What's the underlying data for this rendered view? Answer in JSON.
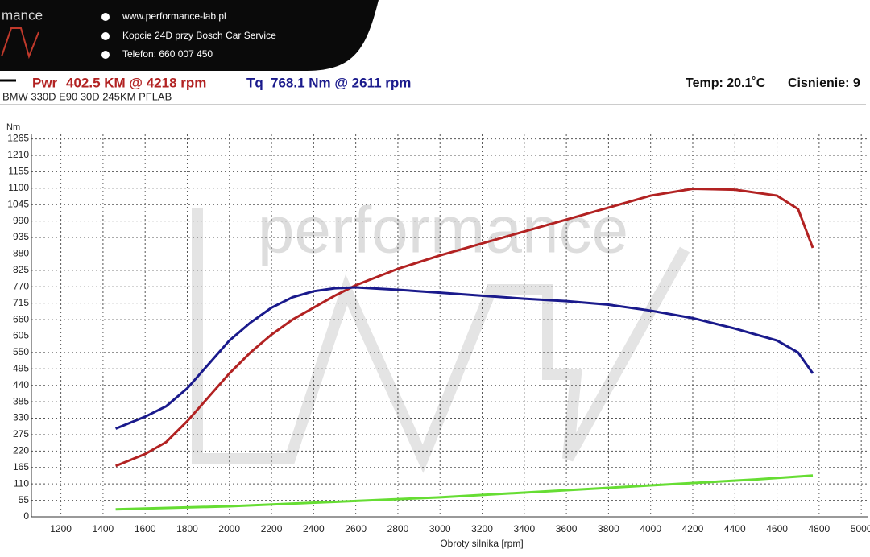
{
  "header": {
    "logo": "mance",
    "website": "www.performance-lab.pl",
    "address": "Kopcie 24D przy Bosch Car Service",
    "phone": "Telefon: 660 007 450"
  },
  "summary": {
    "power": "402.5 KM @ 4218 rpm",
    "torque": "768.1 Nm @ 2611 rpm",
    "temp": "Temp: 20.1˚C",
    "pressure": "Cisnienie: 9",
    "car": "BMW 330D E90 30D 245KM PFLAB"
  },
  "chart_data": {
    "type": "line",
    "watermark": "performance",
    "ylabel": "Nm",
    "xlabel": "Obroty silnika [rpm]",
    "xlim": [
      1060,
      5030
    ],
    "ylim": [
      0,
      1280
    ],
    "xticks": [
      1200,
      1400,
      1600,
      1800,
      2000,
      2200,
      2400,
      2600,
      2800,
      3000,
      3200,
      3400,
      3600,
      3800,
      4000,
      4200,
      4400,
      4600,
      4800,
      5000
    ],
    "yticks": [
      0,
      55,
      110,
      165,
      220,
      275,
      330,
      385,
      440,
      495,
      550,
      605,
      660,
      715,
      770,
      825,
      880,
      935,
      990,
      1045,
      1100,
      1155,
      1210,
      1265
    ],
    "grid": true,
    "series": [
      {
        "name": "Pwr",
        "color": "#b22222",
        "x": [
          1460,
          1600,
          1700,
          1800,
          1900,
          2000,
          2100,
          2200,
          2300,
          2400,
          2500,
          2600,
          2800,
          3000,
          3200,
          3400,
          3600,
          3800,
          4000,
          4200,
          4400,
          4600,
          4700,
          4770
        ],
        "values": [
          170,
          210,
          250,
          320,
          400,
          480,
          550,
          610,
          660,
          700,
          740,
          775,
          830,
          875,
          915,
          955,
          995,
          1035,
          1075,
          1098,
          1095,
          1075,
          1030,
          900
        ]
      },
      {
        "name": "Tq",
        "color": "#1a1a8c",
        "x": [
          1460,
          1600,
          1700,
          1800,
          1900,
          2000,
          2100,
          2200,
          2300,
          2400,
          2500,
          2600,
          2800,
          3000,
          3200,
          3400,
          3600,
          3800,
          4000,
          4200,
          4400,
          4600,
          4700,
          4770
        ],
        "values": [
          295,
          335,
          370,
          430,
          510,
          590,
          650,
          700,
          735,
          755,
          765,
          768,
          760,
          750,
          740,
          730,
          722,
          710,
          690,
          665,
          630,
          590,
          550,
          480
        ]
      },
      {
        "color": "#66dd33",
        "x": [
          1460,
          2000,
          2500,
          3000,
          3500,
          4000,
          4500,
          4770
        ],
        "values": [
          25,
          35,
          50,
          65,
          85,
          105,
          125,
          138
        ]
      }
    ]
  }
}
